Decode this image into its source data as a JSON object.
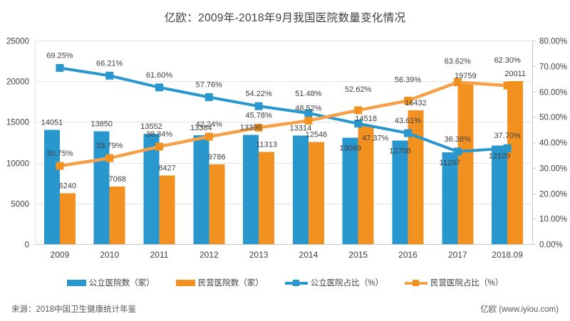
{
  "title": "亿欧：2009年-2018年9月我国医院数量变化情况",
  "footer": {
    "source": "来源：2018中国卫生健康统计年鉴",
    "brand": "亿欧 (www.iyiou.com)"
  },
  "colors": {
    "public_blue": "#2897CE",
    "private_orange": "#F29120",
    "private_orange_line": "#F6A149",
    "grid_line": "#E4E4E4",
    "axis_line": "#C9C9C9",
    "label_text": "#404040",
    "footer_text": "#595959"
  },
  "chart_data": {
    "type": "bar+line combo",
    "title": "亿欧：2009年-2018年9月我国医院数量变化情况",
    "categories": [
      "2009",
      "2010",
      "2011",
      "2012",
      "2013",
      "2014",
      "2015",
      "2016",
      "2017",
      "2018.09"
    ],
    "series": [
      {
        "name": "公立医院数（家）",
        "type": "bar",
        "axis": "left",
        "color": "#2897CE",
        "values": [
          14051,
          13850,
          13552,
          13384,
          13396,
          13314,
          13069,
          12708,
          11297,
          12109
        ]
      },
      {
        "name": "民营医院数（家）",
        "type": "bar",
        "axis": "left",
        "color": "#F29120",
        "values": [
          6240,
          7068,
          8427,
          9786,
          11313,
          12546,
          14518,
          16432,
          19759,
          20011
        ]
      },
      {
        "name": "公立医院占比（%）",
        "type": "line",
        "axis": "right",
        "color": "#2897CE",
        "marker_color": "#2897CE",
        "values": [
          69.25,
          66.21,
          61.6,
          57.76,
          54.22,
          51.48,
          47.37,
          43.61,
          36.38,
          37.7
        ]
      },
      {
        "name": "民营医院占比（%）",
        "type": "line",
        "axis": "right",
        "color": "#F6A149",
        "marker_color": "#F29120",
        "values": [
          30.75,
          33.79,
          38.34,
          42.24,
          45.78,
          48.52,
          52.62,
          56.39,
          63.62,
          62.3
        ]
      }
    ],
    "left_axis": {
      "min": 0,
      "max": 25000,
      "step": 5000,
      "tick_labels": [
        "0",
        "5000",
        "10000",
        "15000",
        "20000",
        "25000"
      ]
    },
    "right_axis": {
      "min": 0,
      "max": 80,
      "step": 10,
      "tick_labels": [
        "0.00%",
        "10.00%",
        "20.00%",
        "30.00%",
        "40.00%",
        "50.00%",
        "60.00%",
        "70.00%",
        "80.00%"
      ]
    },
    "grid": true,
    "legend_position": "bottom"
  }
}
